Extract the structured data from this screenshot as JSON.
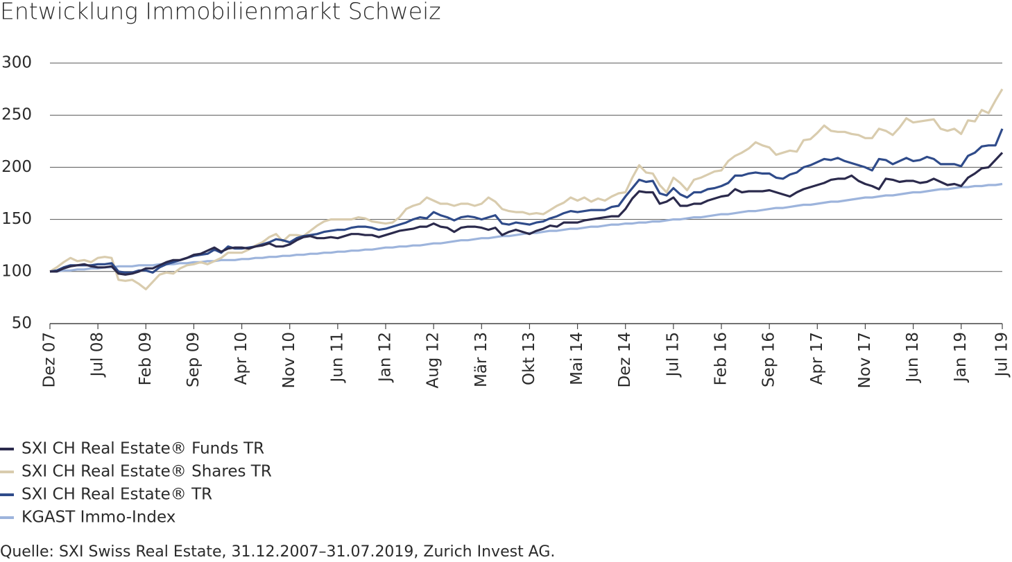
{
  "chart_data": {
    "type": "line",
    "title": "Entwicklung Immobilienmarkt Schweiz",
    "source": "Quelle: SXI Swiss Real Estate, 31.12.2007–31.07.2019, Zurich Invest AG.",
    "categories": [
      "Dez 07",
      null,
      null,
      null,
      null,
      null,
      null,
      "Jul 08",
      null,
      null,
      null,
      null,
      null,
      null,
      "Feb 09",
      null,
      null,
      null,
      null,
      null,
      null,
      "Sep 09",
      null,
      null,
      null,
      null,
      null,
      null,
      "Apr 10",
      null,
      null,
      null,
      null,
      null,
      null,
      "Nov 10",
      null,
      null,
      null,
      null,
      null,
      null,
      "Jun 11",
      null,
      null,
      null,
      null,
      null,
      null,
      "Jan 12",
      null,
      null,
      null,
      null,
      null,
      null,
      "Aug 12",
      null,
      null,
      null,
      null,
      null,
      null,
      "Mär 13",
      null,
      null,
      null,
      null,
      null,
      null,
      "Okt 13",
      null,
      null,
      null,
      null,
      null,
      null,
      "Mai 14",
      null,
      null,
      null,
      null,
      null,
      null,
      "Dez 14",
      null,
      null,
      null,
      null,
      null,
      null,
      "Jul 15",
      null,
      null,
      null,
      null,
      null,
      null,
      "Feb 16",
      null,
      null,
      null,
      null,
      null,
      null,
      "Sep 16",
      null,
      null,
      null,
      null,
      null,
      null,
      "Apr 17",
      null,
      null,
      null,
      null,
      null,
      null,
      "Nov 17",
      null,
      null,
      null,
      null,
      null,
      null,
      "Jun 18",
      null,
      null,
      null,
      null,
      null,
      null,
      "Jan 19",
      null,
      null,
      null,
      null,
      null,
      "Jul 19"
    ],
    "series": [
      {
        "name": "SXI CH Real Estate® Funds TR",
        "color": "#2b2a4c",
        "values": [
          100,
          100,
          103,
          105,
          106,
          107,
          105,
          104,
          104,
          105,
          98,
          97,
          98,
          100,
          103,
          103,
          106,
          109,
          111,
          111,
          113,
          116,
          117,
          120,
          123,
          119,
          122,
          123,
          123,
          122,
          124,
          125,
          127,
          124,
          124,
          126,
          130,
          133,
          134,
          132,
          132,
          133,
          132,
          134,
          136,
          136,
          135,
          135,
          133,
          135,
          137,
          139,
          140,
          141,
          143,
          143,
          146,
          143,
          142,
          138,
          142,
          143,
          143,
          142,
          140,
          142,
          135,
          138,
          140,
          138,
          136,
          139,
          141,
          144,
          143,
          147,
          147,
          147,
          149,
          150,
          151,
          152,
          153,
          153,
          160,
          170,
          177,
          176,
          176,
          165,
          167,
          171,
          163,
          163,
          165,
          165,
          168,
          170,
          172,
          173,
          179,
          176,
          177,
          177,
          177,
          178,
          176,
          174,
          172,
          176,
          179,
          181,
          183,
          185,
          188,
          189,
          189,
          192,
          187,
          184,
          182,
          179,
          189,
          188,
          186,
          187,
          187,
          185,
          186,
          189,
          186,
          183,
          184,
          182,
          190,
          194,
          199,
          200,
          207,
          214
        ]
      },
      {
        "name": "SXI CH Real Estate® Shares TR",
        "color": "#d9ccae",
        "values": [
          100,
          104,
          109,
          113,
          110,
          111,
          109,
          113,
          114,
          113,
          92,
          91,
          92,
          88,
          83,
          90,
          97,
          99,
          98,
          103,
          106,
          107,
          109,
          107,
          110,
          113,
          118,
          118,
          118,
          121,
          125,
          128,
          133,
          136,
          129,
          135,
          135,
          134,
          139,
          144,
          148,
          150,
          150,
          150,
          150,
          152,
          151,
          148,
          147,
          146,
          147,
          152,
          160,
          163,
          165,
          171,
          168,
          165,
          165,
          163,
          165,
          165,
          163,
          165,
          171,
          167,
          160,
          158,
          157,
          157,
          155,
          156,
          155,
          159,
          163,
          166,
          171,
          168,
          171,
          167,
          170,
          168,
          172,
          175,
          176,
          190,
          202,
          195,
          194,
          183,
          176,
          190,
          185,
          178,
          188,
          190,
          193,
          196,
          197,
          206,
          211,
          214,
          218,
          224,
          221,
          219,
          212,
          214,
          216,
          215,
          226,
          227,
          233,
          240,
          235,
          234,
          234,
          232,
          231,
          228,
          228,
          237,
          235,
          231,
          238,
          247,
          243,
          244,
          245,
          246,
          237,
          235,
          237,
          232,
          245,
          244,
          255,
          252,
          264,
          275
        ]
      },
      {
        "name": "SXI CH Real Estate® TR",
        "color": "#2f4b8a",
        "values": [
          100,
          101,
          104,
          106,
          106,
          106,
          106,
          107,
          107,
          108,
          100,
          99,
          99,
          101,
          101,
          99,
          104,
          107,
          109,
          111,
          113,
          115,
          116,
          117,
          121,
          118,
          124,
          122,
          122,
          123,
          124,
          126,
          128,
          131,
          130,
          128,
          132,
          134,
          135,
          136,
          138,
          139,
          140,
          140,
          142,
          143,
          143,
          142,
          140,
          141,
          143,
          145,
          147,
          150,
          152,
          151,
          157,
          154,
          152,
          149,
          152,
          153,
          152,
          150,
          152,
          154,
          146,
          145,
          147,
          146,
          145,
          147,
          148,
          151,
          153,
          156,
          158,
          157,
          158,
          159,
          159,
          159,
          162,
          163,
          172,
          180,
          188,
          186,
          187,
          175,
          173,
          180,
          174,
          171,
          176,
          176,
          179,
          180,
          182,
          185,
          192,
          192,
          194,
          195,
          194,
          194,
          190,
          189,
          193,
          195,
          200,
          202,
          205,
          208,
          207,
          209,
          206,
          204,
          202,
          200,
          197,
          208,
          207,
          203,
          206,
          209,
          206,
          207,
          210,
          208,
          203,
          203,
          203,
          201,
          211,
          214,
          220,
          221,
          221,
          237
        ]
      },
      {
        "name": "KGAST Immo-Index",
        "color": "#9db4dc",
        "values": [
          100,
          100,
          101,
          101,
          102,
          102,
          103,
          103,
          104,
          104,
          105,
          105,
          105,
          106,
          106,
          106,
          107,
          107,
          107,
          108,
          108,
          109,
          109,
          110,
          110,
          111,
          111,
          111,
          112,
          112,
          113,
          113,
          114,
          114,
          115,
          115,
          116,
          116,
          117,
          117,
          118,
          118,
          119,
          119,
          120,
          120,
          121,
          121,
          122,
          123,
          123,
          124,
          124,
          125,
          125,
          126,
          127,
          127,
          128,
          129,
          130,
          130,
          131,
          132,
          132,
          133,
          134,
          134,
          135,
          136,
          137,
          137,
          138,
          139,
          139,
          140,
          141,
          141,
          142,
          143,
          143,
          144,
          145,
          145,
          146,
          146,
          147,
          147,
          148,
          148,
          149,
          150,
          150,
          151,
          152,
          152,
          153,
          154,
          155,
          155,
          156,
          157,
          158,
          158,
          159,
          160,
          161,
          161,
          162,
          163,
          164,
          164,
          165,
          166,
          167,
          167,
          168,
          169,
          170,
          171,
          171,
          172,
          173,
          173,
          174,
          175,
          176,
          176,
          177,
          178,
          179,
          179,
          180,
          181,
          181,
          182,
          182,
          183,
          183,
          184
        ]
      }
    ],
    "ylim": [
      50,
      300
    ],
    "yticks": [
      50,
      100,
      150,
      200,
      250,
      300
    ],
    "grid": true
  }
}
